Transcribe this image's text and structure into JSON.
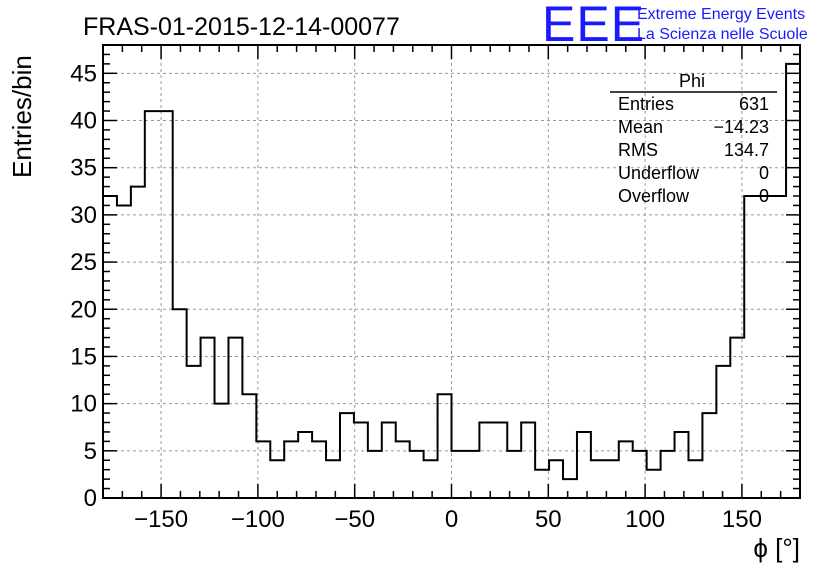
{
  "title": "FRAS-01-2015-12-14-00077",
  "logo": {
    "mark": "EEE",
    "line1": "Extreme Energy Events",
    "line2": "La Scienza nelle Scuole",
    "color": "#1a1aff"
  },
  "stats": {
    "name": "Phi",
    "rows": [
      {
        "label": "Entries",
        "value": "631"
      },
      {
        "label": "Mean",
        "value": "−14.23"
      },
      {
        "label": "RMS",
        "value": "134.7"
      },
      {
        "label": "Underflow",
        "value": "0"
      },
      {
        "label": "Overflow",
        "value": "0"
      }
    ]
  },
  "chart_data": {
    "type": "histogram",
    "title": "FRAS-01-2015-12-14-00077",
    "xlabel": "ϕ [°]",
    "ylabel": "Entries/bin",
    "xlim": [
      -180,
      180
    ],
    "ylim": [
      0,
      48
    ],
    "grid": true,
    "line_color": "#000000",
    "x_tick_values": [
      -150,
      -100,
      -50,
      0,
      50,
      100,
      150
    ],
    "x_tick_labels": [
      "−150",
      "−100",
      "−50",
      "0",
      "50",
      "100",
      "150"
    ],
    "y_tick_values": [
      0,
      5,
      10,
      15,
      20,
      25,
      30,
      35,
      40,
      45
    ],
    "y_tick_labels": [
      "0",
      "5",
      "10",
      "15",
      "20",
      "25",
      "30",
      "35",
      "40",
      "45"
    ],
    "bin_edges": [
      -180,
      -172.8,
      -165.6,
      -158.4,
      -151.2,
      -144,
      -136.8,
      -129.6,
      -122.4,
      -115.2,
      -108,
      -100.8,
      -93.6,
      -86.4,
      -79.2,
      -72,
      -64.8,
      -57.6,
      -50.4,
      -43.2,
      -36,
      -28.8,
      -21.6,
      -14.4,
      -7.2,
      0,
      7.2,
      14.4,
      21.6,
      28.8,
      36,
      43.2,
      50.4,
      57.6,
      64.8,
      72,
      79.2,
      86.4,
      93.6,
      100.8,
      108,
      115.2,
      122.4,
      129.6,
      136.8,
      144,
      151.2,
      158.4,
      165.6,
      172.8,
      180
    ],
    "values": [
      32,
      31,
      33,
      41,
      41,
      20,
      14,
      17,
      10,
      17,
      11,
      6,
      4,
      6,
      7,
      6,
      4,
      9,
      8,
      5,
      8,
      6,
      5,
      4,
      11,
      5,
      5,
      8,
      8,
      5,
      8,
      3,
      4,
      2,
      7,
      4,
      4,
      6,
      5,
      3,
      5,
      7,
      4,
      9,
      14,
      17,
      32,
      32,
      32,
      46
    ]
  }
}
